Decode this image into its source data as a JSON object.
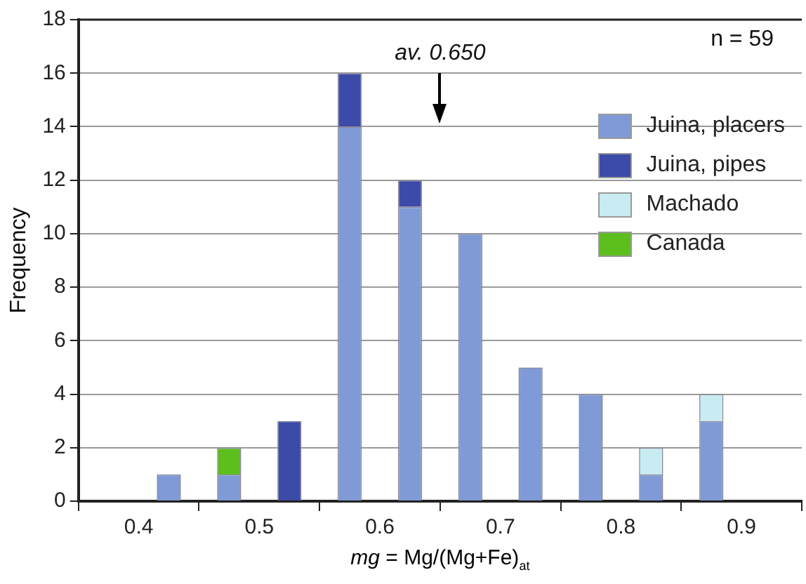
{
  "chart_data": {
    "type": "bar",
    "stacked": true,
    "xlabel": "mg = Mg/(Mg+Fe)$_{at}$",
    "ylabel": "Frequency",
    "x": [
      0.425,
      0.475,
      0.525,
      0.575,
      0.625,
      0.675,
      0.725,
      0.775,
      0.825,
      0.875
    ],
    "series": [
      {
        "name": "Juina, placers",
        "color": "#7f9ad6",
        "values": [
          1,
          1,
          0,
          14,
          11,
          10,
          5,
          4,
          1,
          3
        ]
      },
      {
        "name": "Juina, pipes",
        "color": "#3c4aa8",
        "values": [
          0,
          0,
          3,
          2,
          1,
          0,
          0,
          0,
          0,
          0
        ]
      },
      {
        "name": "Machado",
        "color": "#c8ecf2",
        "values": [
          0,
          0,
          0,
          0,
          0,
          0,
          0,
          0,
          1,
          1
        ]
      },
      {
        "name": "Canada",
        "color": "#5cbf1e",
        "values": [
          0,
          1,
          0,
          0,
          0,
          0,
          0,
          0,
          0,
          0
        ]
      }
    ],
    "xlim": [
      0.35,
      0.95
    ],
    "xticks": [
      {
        "value": 0.35,
        "label": null
      },
      0.4,
      {
        "value": 0.45,
        "label": null
      },
      0.5,
      {
        "value": 0.55,
        "label": null
      },
      0.6,
      {
        "value": 0.65,
        "label": null
      },
      0.7,
      {
        "value": 0.75,
        "label": null
      },
      0.8,
      {
        "value": 0.85,
        "label": null
      },
      0.9,
      {
        "value": 0.95,
        "label": null
      }
    ],
    "ylim": [
      0,
      18
    ],
    "yticks": [
      0,
      2,
      4,
      6,
      8,
      10,
      12,
      14,
      16,
      18
    ],
    "grid": "y",
    "legend": "top right",
    "annotations": [
      "av. 0.650",
      "n = 59"
    ]
  }
}
